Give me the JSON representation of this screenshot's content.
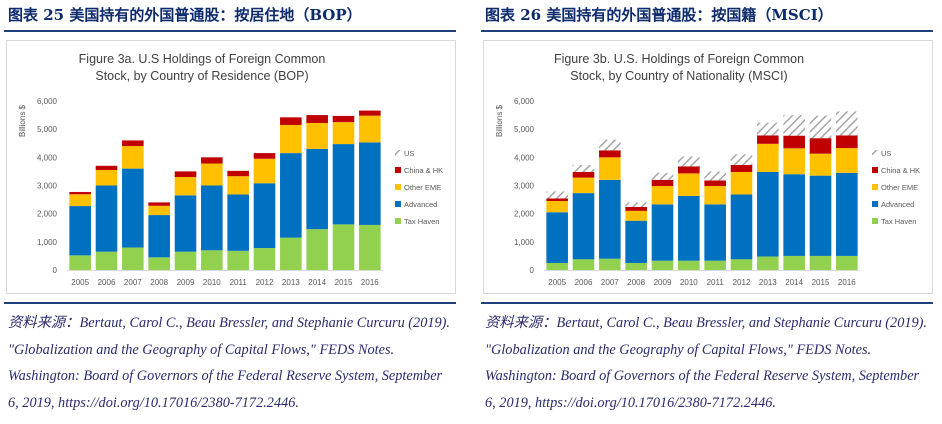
{
  "panels": [
    {
      "header": "图表 25  美国持有的外国普通股：按居住地（BOP）",
      "chart_title_line1": "Figure 3a.  U.S Holdings of Foreign Common",
      "chart_title_line2": "Stock, by Country of Residence (BOP)",
      "source": "资料来源：Bertaut, Carol C., Beau Bressler, and Stephanie Curcuru (2019). \"Globalization and the Geography of Capital Flows,\" FEDS Notes. Washington: Board of Governors of the Federal Reserve System, September 6, 2019, https://doi.org/10.17016/2380-7172.2446."
    },
    {
      "header": "图表 26  美国持有的外国普通股：按国籍（MSCI）",
      "chart_title_line1": "Figure 3b.  U.S. Holdings of Foreign Common",
      "chart_title_line2": "Stock, by Country of Nationality (MSCI)",
      "source": "资料来源：Bertaut, Carol C., Beau Bressler, and Stephanie Curcuru (2019). \"Globalization and the Geography of Capital Flows,\" FEDS Notes. Washington: Board of Governors of the Federal Reserve System, September 6, 2019, https://doi.org/10.17016/2380-7172.2446."
    }
  ],
  "colors": {
    "tax_haven": "#92d050",
    "advanced": "#0070c0",
    "other_eme": "#ffc000",
    "china_hk": "#c00000",
    "us_hatch": "#a6a6a6"
  },
  "chart_data": [
    {
      "type": "bar",
      "stacked": true,
      "title": "Figure 3a. U.S Holdings of Foreign Common Stock, by Country of Residence (BOP)",
      "ylabel": "Billions $",
      "ylim": [
        0,
        6000
      ],
      "yticks": [
        "0",
        "1,000",
        "2,000",
        "3,000",
        "4,000",
        "5,000",
        "6,000"
      ],
      "categories": [
        "2005",
        "2006",
        "2007",
        "2008",
        "2009",
        "2010",
        "2011",
        "2012",
        "2013",
        "2014",
        "2015",
        "2016"
      ],
      "legend": [
        "US",
        "China & HK",
        "Other EME",
        "Advanced",
        "Tax Haven"
      ],
      "series": [
        {
          "name": "Tax Haven",
          "key": "tax_haven",
          "values": [
            520,
            650,
            800,
            450,
            650,
            700,
            680,
            780,
            1150,
            1450,
            1620,
            1600
          ]
        },
        {
          "name": "Advanced",
          "key": "advanced",
          "values": [
            1750,
            2350,
            2800,
            1500,
            2000,
            2300,
            2000,
            2300,
            3000,
            2850,
            2850,
            2930
          ]
        },
        {
          "name": "Other EME",
          "key": "other_eme",
          "values": [
            420,
            550,
            800,
            330,
            650,
            780,
            650,
            870,
            1000,
            920,
            780,
            950
          ]
        },
        {
          "name": "China & HK",
          "key": "china_hk",
          "values": [
            80,
            150,
            200,
            120,
            200,
            220,
            190,
            200,
            270,
            280,
            220,
            180
          ]
        },
        {
          "name": "US",
          "key": "us_hatch",
          "values": [
            0,
            0,
            0,
            0,
            0,
            0,
            0,
            0,
            0,
            0,
            0,
            0
          ]
        }
      ]
    },
    {
      "type": "bar",
      "stacked": true,
      "title": "Figure 3b. U.S. Holdings of Foreign Common Stock, by Country of Nationality (MSCI)",
      "ylabel": "Billions $",
      "ylim": [
        0,
        6000
      ],
      "yticks": [
        "0",
        "1,000",
        "2,000",
        "3,000",
        "4,000",
        "5,000",
        "6,000"
      ],
      "categories": [
        "2005",
        "2006",
        "2007",
        "2008",
        "2009",
        "2010",
        "2011",
        "2012",
        "2013",
        "2014",
        "2015",
        "2016"
      ],
      "legend": [
        "US",
        "China & HK",
        "Other EME",
        "Advanced",
        "Tax Haven"
      ],
      "series": [
        {
          "name": "Tax Haven",
          "key": "tax_haven",
          "values": [
            250,
            380,
            400,
            250,
            330,
            330,
            330,
            380,
            480,
            500,
            500,
            500
          ]
        },
        {
          "name": "Advanced",
          "key": "advanced",
          "values": [
            1800,
            2350,
            2800,
            1500,
            2000,
            2300,
            2000,
            2300,
            3000,
            2900,
            2850,
            2950
          ]
        },
        {
          "name": "Other EME",
          "key": "other_eme",
          "values": [
            400,
            550,
            800,
            350,
            650,
            800,
            650,
            800,
            1000,
            920,
            780,
            880
          ]
        },
        {
          "name": "China & HK",
          "key": "china_hk",
          "values": [
            90,
            200,
            250,
            140,
            220,
            250,
            200,
            250,
            300,
            450,
            550,
            450
          ]
        },
        {
          "name": "US",
          "key": "us_hatch",
          "values": [
            250,
            250,
            380,
            160,
            250,
            350,
            320,
            380,
            450,
            730,
            800,
            850
          ]
        }
      ]
    }
  ]
}
